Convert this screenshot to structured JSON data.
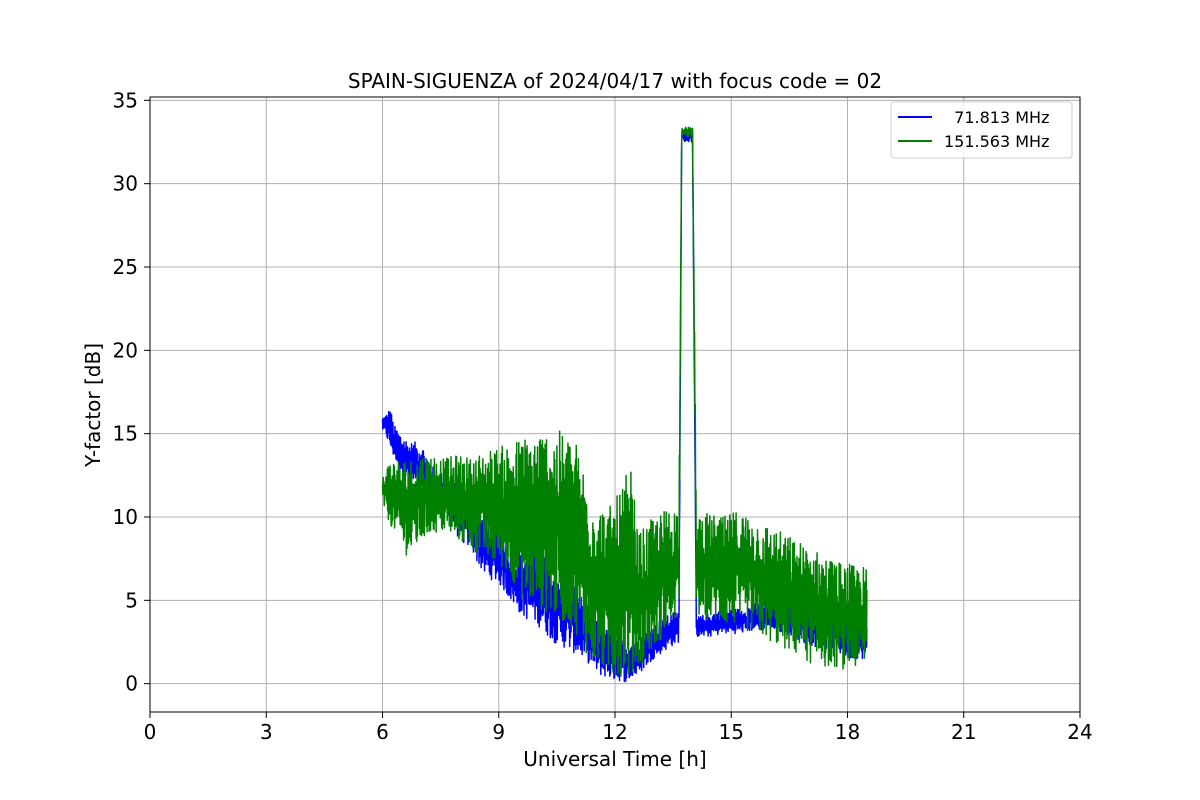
{
  "chart_data": {
    "type": "line",
    "title": "SPAIN-SIGUENZA of 2024/04/17 with focus code = 02",
    "xlabel": "Universal Time [h]",
    "ylabel": "Y-factor [dB]",
    "xlim": [
      0,
      24
    ],
    "ylim": [
      -1.7,
      35.2
    ],
    "xticks": [
      0,
      3,
      6,
      9,
      12,
      15,
      18,
      21,
      24
    ],
    "yticks": [
      0,
      5,
      10,
      15,
      20,
      25,
      30,
      35
    ],
    "grid": true,
    "legend_position": "top-right",
    "series": [
      {
        "name": "  71.813 MHz",
        "color": "#0000ff",
        "x": [
          6.0,
          6.1,
          6.2,
          6.3,
          6.5,
          6.7,
          7.0,
          7.3,
          7.6,
          8.0,
          8.3,
          8.6,
          9.0,
          9.3,
          9.6,
          10.0,
          10.4,
          10.8,
          11.2,
          11.6,
          12.0,
          12.3,
          12.6,
          13.0,
          13.3,
          13.65,
          13.72,
          13.8,
          13.9,
          14.0,
          14.1,
          14.4,
          14.8,
          15.2,
          15.6,
          16.0,
          16.4,
          16.8,
          17.2,
          17.6,
          18.0,
          18.5
        ],
        "min": [
          15.2,
          14.8,
          14.0,
          13.5,
          12.5,
          12.0,
          11.5,
          11.0,
          10.5,
          8.5,
          8.0,
          6.5,
          6.0,
          5.0,
          4.0,
          3.5,
          2.5,
          2.0,
          1.5,
          0.5,
          0.2,
          0.1,
          0.5,
          1.5,
          2.0,
          2.5,
          32.5,
          32.5,
          32.5,
          32.5,
          2.8,
          2.8,
          3.0,
          3.0,
          3.2,
          3.2,
          3.0,
          2.5,
          2.2,
          2.0,
          1.5,
          1.5
        ],
        "max": [
          16.0,
          16.2,
          16.6,
          15.5,
          15.0,
          14.5,
          14.5,
          13.0,
          12.5,
          12.0,
          11.5,
          10.0,
          9.5,
          8.0,
          8.0,
          9.0,
          7.0,
          6.5,
          5.0,
          3.5,
          3.0,
          2.5,
          3.0,
          3.5,
          4.0,
          4.5,
          33.3,
          33.3,
          33.3,
          33.3,
          4.0,
          4.2,
          4.5,
          4.5,
          4.8,
          5.0,
          5.0,
          4.8,
          4.5,
          4.5,
          4.0,
          3.5
        ]
      },
      {
        "name": "151.563 MHz",
        "color": "#008000",
        "x": [
          6.0,
          6.1,
          6.2,
          6.35,
          6.5,
          6.7,
          7.0,
          7.3,
          7.6,
          8.0,
          8.3,
          8.6,
          9.0,
          9.3,
          9.6,
          10.0,
          10.4,
          10.8,
          11.0,
          11.2,
          11.5,
          11.8,
          12.0,
          12.2,
          12.4,
          12.6,
          13.0,
          13.3,
          13.65,
          13.72,
          13.8,
          13.9,
          14.0,
          14.1,
          14.4,
          14.8,
          15.2,
          15.6,
          16.0,
          16.4,
          16.8,
          17.2,
          17.6,
          18.0,
          18.5
        ],
        "min": [
          10.8,
          10.0,
          9.5,
          9.0,
          8.0,
          7.5,
          8.5,
          9.0,
          9.0,
          8.5,
          8.0,
          7.5,
          7.0,
          6.5,
          5.0,
          4.5,
          4.0,
          3.5,
          3.0,
          2.0,
          1.0,
          0.5,
          0.3,
          0.5,
          0.2,
          1.0,
          2.0,
          3.0,
          4.0,
          32.8,
          32.8,
          32.8,
          32.8,
          4.0,
          3.8,
          3.5,
          3.5,
          3.0,
          2.5,
          2.0,
          1.5,
          1.0,
          1.0,
          0.8,
          1.0
        ],
        "max": [
          12.5,
          13.0,
          13.5,
          13.5,
          13.5,
          13.5,
          13.8,
          13.8,
          13.5,
          13.8,
          13.5,
          14.0,
          14.2,
          14.5,
          14.8,
          15.2,
          15.3,
          15.0,
          14.5,
          13.0,
          11.0,
          10.5,
          11.0,
          12.0,
          13.2,
          9.0,
          10.0,
          10.5,
          10.8,
          33.4,
          33.4,
          33.4,
          33.4,
          10.5,
          10.2,
          10.0,
          10.5,
          10.0,
          9.5,
          9.0,
          8.5,
          8.0,
          7.5,
          7.2,
          7.0
        ]
      }
    ]
  }
}
